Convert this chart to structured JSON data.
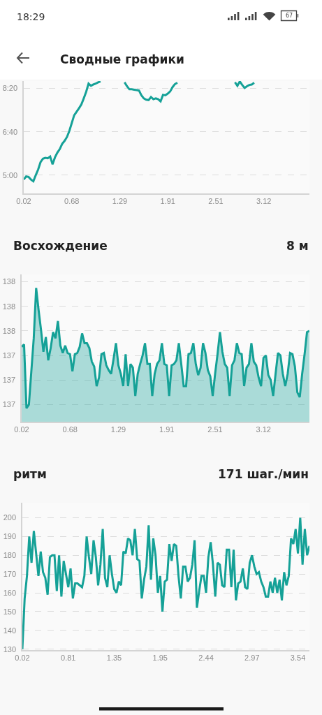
{
  "chart_data": [
    {
      "type": "line",
      "title": "Сводные графики",
      "annotations": [
        "18:29",
        "67"
      ],
      "categories": [
        "0.02",
        null,
        null,
        null,
        null,
        null,
        null,
        null,
        null,
        null,
        null,
        null,
        null,
        null,
        null,
        null,
        null,
        null,
        null,
        null,
        "0.68",
        null,
        null,
        null,
        null,
        null,
        null,
        null,
        null,
        null,
        null,
        null,
        null,
        null,
        null,
        null,
        null,
        null,
        null,
        null,
        "1.29",
        null,
        null,
        null,
        null,
        null,
        null,
        null,
        null,
        null,
        null,
        null,
        null,
        null,
        null,
        null,
        null,
        null,
        null,
        null,
        "1.91",
        null,
        null,
        null,
        null,
        null,
        null,
        null,
        null,
        null,
        null,
        null,
        null,
        null,
        null,
        null,
        null,
        null,
        null,
        null,
        "2.51",
        null,
        null,
        null,
        null,
        null,
        null,
        null,
        null,
        null,
        null,
        null,
        null,
        null,
        null,
        null,
        null,
        null,
        null,
        null,
        "3.12",
        null,
        null,
        null,
        null,
        null,
        null,
        null,
        null,
        null,
        null,
        null,
        null,
        null,
        null,
        null,
        null,
        null,
        null,
        null
      ],
      "values": [
        290,
        297,
        296,
        290,
        286,
        300,
        313,
        330,
        338,
        340,
        339,
        343,
        325,
        341,
        352,
        360,
        372,
        379,
        388,
        402,
        420,
        438,
        446,
        454,
        463,
        477,
        492,
        511,
        506,
        509,
        511,
        514,
        516,
        null,
        null,
        null,
        null,
        null,
        null,
        null,
        null,
        null,
        514,
        505,
        498,
        498,
        497,
        496,
        495,
        484,
        477,
        474,
        473,
        480,
        475,
        477,
        475,
        470,
        485,
        484,
        488,
        493,
        503,
        510,
        513,
        null,
        null,
        null,
        null,
        null,
        null,
        null,
        null,
        null,
        null,
        null,
        null,
        null,
        null,
        null,
        null,
        null,
        null,
        null,
        null,
        null,
        null,
        null,
        514,
        506,
        516,
        508,
        501,
        505,
        508,
        509,
        513,
        null,
        null,
        null,
        null,
        null,
        null,
        null,
        null,
        null,
        null,
        null,
        null,
        null,
        null,
        null,
        null,
        null,
        null,
        null,
        null,
        null,
        null,
        null
      ],
      "color": "#15a197",
      "ylim": [
        258,
        517
      ],
      "yticks": [
        {
          "value": 300,
          "label": "5:00"
        },
        {
          "value": 400,
          "label": "6:40"
        },
        {
          "value": 500,
          "label": "8:20"
        }
      ],
      "grid": "y"
    },
    {
      "type": "area",
      "title": "Восхождение",
      "subtitle": "8 м",
      "categories": [
        "0.02",
        null,
        null,
        null,
        null,
        null,
        null,
        null,
        null,
        null,
        null,
        null,
        null,
        null,
        null,
        null,
        null,
        null,
        null,
        null,
        "0.68",
        null,
        null,
        null,
        null,
        null,
        null,
        null,
        null,
        null,
        null,
        null,
        null,
        null,
        null,
        null,
        null,
        null,
        null,
        null,
        "1.29",
        null,
        null,
        null,
        null,
        null,
        null,
        null,
        null,
        null,
        null,
        null,
        null,
        null,
        null,
        null,
        null,
        null,
        null,
        null,
        "1.91",
        null,
        null,
        null,
        null,
        null,
        null,
        null,
        null,
        null,
        null,
        null,
        null,
        null,
        null,
        null,
        null,
        null,
        null,
        null,
        "2.51",
        null,
        null,
        null,
        null,
        null,
        null,
        null,
        null,
        null,
        null,
        null,
        null,
        null,
        null,
        null,
        null,
        null,
        null,
        null,
        "3.12",
        null,
        null,
        null,
        null,
        null,
        null,
        null,
        null,
        null,
        null,
        null,
        null,
        null,
        null,
        null,
        null,
        null,
        null,
        null
      ],
      "values": [
        137.47,
        137.49,
        136.97,
        137.0,
        137.27,
        137.54,
        137.95,
        137.77,
        137.61,
        137.43,
        137.55,
        137.36,
        137.46,
        137.59,
        137.54,
        137.68,
        137.48,
        137.42,
        137.48,
        137.42,
        137.41,
        137.27,
        137.41,
        137.42,
        137.47,
        137.58,
        137.5,
        137.5,
        137.46,
        137.35,
        137.31,
        137.15,
        137.22,
        137.41,
        137.42,
        137.32,
        137.28,
        137.25,
        137.37,
        137.5,
        137.32,
        137.25,
        137.15,
        137.41,
        137.15,
        137.33,
        137.3,
        137.07,
        137.25,
        137.33,
        137.4,
        137.5,
        137.33,
        137.33,
        137.07,
        137.25,
        137.33,
        137.36,
        137.5,
        137.33,
        137.32,
        137.07,
        137.32,
        137.33,
        137.36,
        137.5,
        137.33,
        137.15,
        137.15,
        137.41,
        137.42,
        137.5,
        137.33,
        137.24,
        137.3,
        137.5,
        137.42,
        137.28,
        137.23,
        137.07,
        137.25,
        137.41,
        137.59,
        137.43,
        137.33,
        137.3,
        137.07,
        137.32,
        137.36,
        137.5,
        137.42,
        137.41,
        137.15,
        137.3,
        137.33,
        137.5,
        137.35,
        137.32,
        137.22,
        137.15,
        137.38,
        137.4,
        137.24,
        137.2,
        137.07,
        137.25,
        137.42,
        137.4,
        137.25,
        137.15,
        137.25,
        137.42,
        137.41,
        137.31,
        137.1,
        137.06,
        137.25,
        137.41,
        137.59,
        137.6
      ],
      "color": "#15a197",
      "ylim": [
        136.86,
        138.06
      ],
      "yticks": [
        137,
        {
          "value": 137.2,
          "label": "137"
        },
        {
          "value": 137.4,
          "label": "137"
        },
        {
          "value": 137.6,
          "label": "138"
        },
        {
          "value": 137.8,
          "label": "138"
        },
        138
      ],
      "grid": "y"
    },
    {
      "type": "line",
      "title": "ритм",
      "subtitle": "171 шаг./мин",
      "categories": [
        "0.02",
        null,
        null,
        null,
        null,
        null,
        null,
        null,
        null,
        null,
        null,
        null,
        null,
        null,
        null,
        null,
        null,
        null,
        null,
        null,
        "0.81",
        null,
        null,
        null,
        null,
        null,
        null,
        null,
        null,
        null,
        null,
        null,
        null,
        null,
        null,
        null,
        null,
        null,
        null,
        null,
        "1.35",
        null,
        null,
        null,
        null,
        null,
        null,
        null,
        null,
        null,
        null,
        null,
        null,
        null,
        null,
        null,
        null,
        null,
        null,
        null,
        "1.95",
        null,
        null,
        null,
        null,
        null,
        null,
        null,
        null,
        null,
        null,
        null,
        null,
        null,
        null,
        null,
        null,
        null,
        null,
        null,
        "2.44",
        null,
        null,
        null,
        null,
        null,
        null,
        null,
        null,
        null,
        null,
        null,
        null,
        null,
        null,
        null,
        null,
        null,
        null,
        null,
        "2.97",
        null,
        null,
        null,
        null,
        null,
        null,
        null,
        null,
        null,
        null,
        null,
        null,
        null,
        null,
        null,
        null,
        null,
        null,
        null,
        "3.54",
        null,
        null,
        null,
        null,
        null
      ],
      "values": [
        130,
        157,
        169,
        190,
        176,
        193,
        181,
        169,
        182,
        171,
        168,
        159,
        179,
        180,
        180,
        161,
        180,
        158,
        177,
        170,
        163,
        173,
        157,
        165,
        165,
        164,
        163,
        169,
        190,
        179,
        170,
        188,
        179,
        164,
        175,
        194,
        168,
        163,
        180,
        170,
        162,
        160,
        166,
        164,
        182,
        181,
        189,
        188,
        180,
        194,
        178,
        177,
        157,
        167,
        174,
        196,
        167,
        189,
        180,
        160,
        169,
        150,
        166,
        167,
        186,
        177,
        186,
        185,
        169,
        157,
        174,
        174,
        166,
        168,
        175,
        188,
        152,
        161,
        169,
        169,
        160,
        179,
        187,
        175,
        158,
        176,
        175,
        164,
        163,
        183,
        183,
        163,
        183,
        156,
        165,
        166,
        173,
        163,
        162,
        176,
        180,
        174,
        170,
        171,
        166,
        163,
        158,
        158,
        166,
        160,
        168,
        160,
        167,
        156,
        171,
        164,
        169,
        189,
        186,
        194,
        181,
        200,
        175,
        194,
        180,
        185
      ],
      "color": "#15a197",
      "ylim": [
        129.5,
        208
      ],
      "yticks": [
        130,
        140,
        150,
        160,
        170,
        180,
        190,
        200
      ],
      "grid": "y"
    }
  ]
}
